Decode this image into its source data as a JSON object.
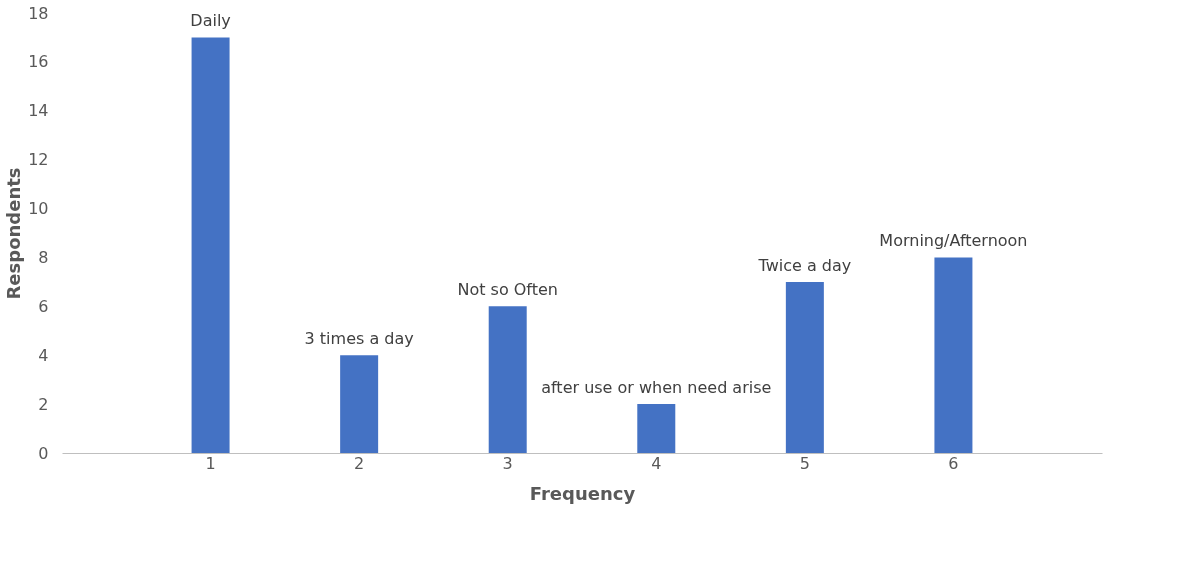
{
  "chart_data": {
    "type": "bar",
    "xlabel": "Frequency",
    "ylabel": "Respondents",
    "categories": [
      "1",
      "2",
      "3",
      "4",
      "5",
      "6"
    ],
    "values": [
      17,
      4,
      6,
      2,
      7,
      8
    ],
    "color": "#4472c4",
    "ylim": [
      0,
      18
    ],
    "yticks": [
      0,
      2,
      4,
      6,
      8,
      10,
      12,
      14,
      16,
      18
    ],
    "grid": false,
    "annotations": [
      {
        "text": "Daily",
        "x": "1",
        "y": 17
      },
      {
        "text": "3 times a day",
        "x": "2",
        "y": 4
      },
      {
        "text": "Not so Often",
        "x": "3",
        "y": 6
      },
      {
        "text": "after  use or when need arise",
        "x": "4",
        "y": 2
      },
      {
        "text": "Twice a day",
        "x": "5",
        "y": 7
      },
      {
        "text": "Morning/Afternoon",
        "x": "6",
        "y": 8
      }
    ]
  }
}
